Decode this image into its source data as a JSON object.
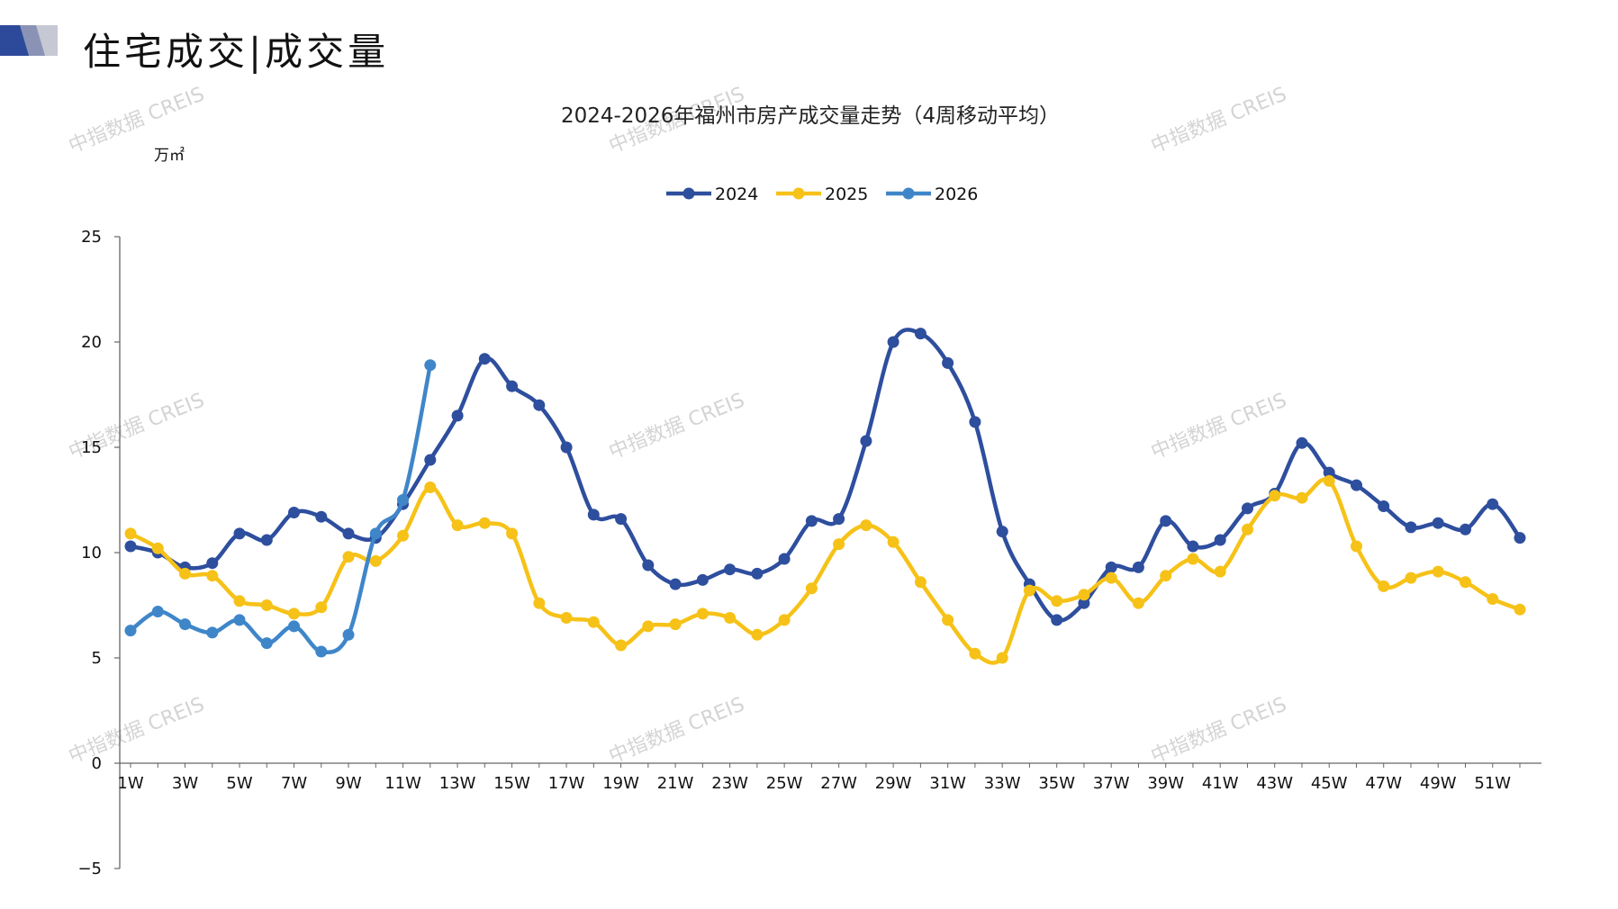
{
  "header": {
    "title": "住宅成交|成交量",
    "logo_colors": [
      "#2d4a9a",
      "#8a93b5",
      "#c6c9d3"
    ]
  },
  "watermark": {
    "text": "中指数据 CREIS"
  },
  "chart_data": {
    "type": "line",
    "title": "2024-2026年福州市房产成交量走势（4周移动平均）",
    "ylabel": "万㎡",
    "xlabel": "",
    "ylim": [
      -5,
      25
    ],
    "yticks": [
      -5,
      0,
      5,
      10,
      15,
      20,
      25
    ],
    "grid": false,
    "legend": "top-center",
    "x_count": 52,
    "x_tick_labels": [
      "1W",
      "3W",
      "5W",
      "7W",
      "9W",
      "11W",
      "13W",
      "15W",
      "17W",
      "19W",
      "21W",
      "23W",
      "25W",
      "27W",
      "29W",
      "31W",
      "33W",
      "35W",
      "37W",
      "39W",
      "41W",
      "43W",
      "45W",
      "47W",
      "49W",
      "51W"
    ],
    "series": [
      {
        "name": "2024",
        "color": "#2e4e9e",
        "values": [
          10.3,
          10.0,
          9.3,
          9.5,
          10.9,
          10.6,
          11.9,
          11.7,
          10.9,
          10.7,
          12.3,
          14.4,
          16.5,
          19.2,
          17.9,
          17.0,
          15.0,
          11.8,
          11.6,
          9.4,
          8.5,
          8.7,
          9.2,
          9.0,
          9.7,
          11.5,
          11.6,
          15.3,
          20.0,
          20.4,
          19.0,
          16.2,
          11.0,
          8.5,
          6.8,
          7.6,
          9.3,
          9.3,
          11.5,
          10.3,
          10.6,
          12.1,
          12.8,
          15.2,
          13.8,
          13.2,
          12.2,
          11.2,
          11.4,
          11.1,
          12.3,
          10.7
        ]
      },
      {
        "name": "2025",
        "color": "#f6c218",
        "values": [
          10.9,
          10.2,
          9.0,
          8.9,
          7.7,
          7.5,
          7.1,
          7.4,
          9.8,
          9.6,
          10.8,
          13.1,
          11.3,
          11.4,
          10.9,
          7.6,
          6.9,
          6.7,
          5.6,
          6.5,
          6.6,
          7.1,
          6.9,
          6.1,
          6.8,
          8.3,
          10.4,
          11.3,
          10.5,
          8.6,
          6.8,
          5.2,
          5.0,
          8.2,
          7.7,
          8.0,
          8.8,
          7.6,
          8.9,
          9.7,
          9.1,
          11.1,
          12.7,
          12.6,
          13.4,
          10.3,
          8.4,
          8.8,
          9.1,
          8.6,
          7.8,
          7.3
        ]
      },
      {
        "name": "2026",
        "color": "#3f86c9",
        "values": [
          6.3,
          7.2,
          6.6,
          6.2,
          6.8,
          5.7,
          6.5,
          5.3,
          6.1,
          10.9,
          12.5,
          18.9
        ]
      }
    ]
  }
}
